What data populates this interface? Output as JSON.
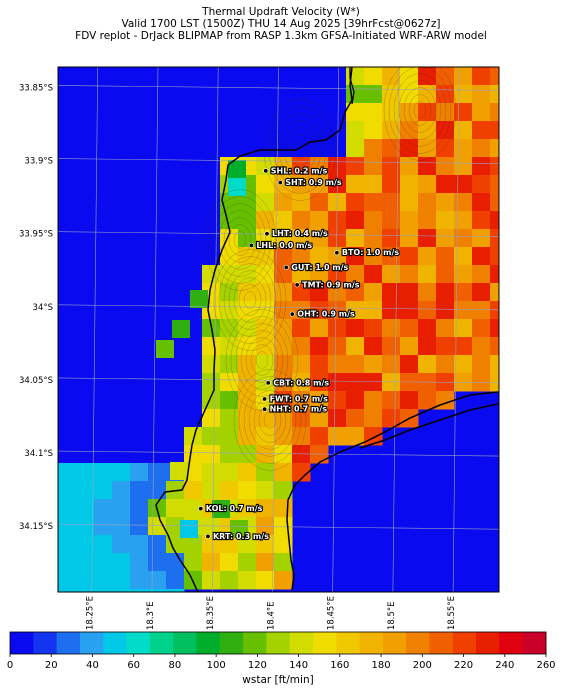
{
  "header": {
    "title_line1": "Thermal Updraft Velocity (W*)",
    "title_line2": "Valid 1700 LST (1500Z) THU 14 Aug 2025 [39hrFcst@0627z]",
    "title_line3": "FDV replot - DrJack BLIPMAP from RASP 1.3km GFSA-Initiated WRF-ARW model"
  },
  "map": {
    "lat_labels": [
      "33.85°S",
      "33.9°S",
      "33.95°S",
      "34°S",
      "34.05°S",
      "34.1°S",
      "34.15°S"
    ],
    "lat_values": [
      -33.85,
      -33.9,
      -33.95,
      -34.0,
      -34.05,
      -34.1,
      -34.15
    ],
    "lon_labels": [
      "18.25°E",
      "18.3°E",
      "18.35°E",
      "18.4°E",
      "18.45°E",
      "18.5°E",
      "18.55°E"
    ],
    "lon_values": [
      18.25,
      18.3,
      18.35,
      18.4,
      18.45,
      18.5,
      18.55
    ],
    "stations": [
      {
        "code": "SHL",
        "text": "SHL: 0.2 m/s",
        "lon": 18.392,
        "lat": -33.907
      },
      {
        "code": "SHT",
        "text": "SHT: 0.9 m/s",
        "lon": 18.404,
        "lat": -33.915
      },
      {
        "code": "LHT",
        "text": "LHT: 0.4 m/s",
        "lon": 18.393,
        "lat": -33.95
      },
      {
        "code": "LHL",
        "text": "LHL: 0.0 m/s",
        "lon": 18.38,
        "lat": -33.958
      },
      {
        "code": "BTO",
        "text": "BTO: 1.0 m/s",
        "lon": 18.451,
        "lat": -33.963
      },
      {
        "code": "GUT",
        "text": "GUT: 1.0 m/s",
        "lon": 18.409,
        "lat": -33.973
      },
      {
        "code": "TMT",
        "text": "TMT: 0.9 m/s",
        "lon": 18.418,
        "lat": -33.985
      },
      {
        "code": "OHT",
        "text": "OHT: 0.9 m/s",
        "lon": 18.414,
        "lat": -34.005
      },
      {
        "code": "CBT",
        "text": "CBT: 0.8 m/s",
        "lon": 18.394,
        "lat": -34.052
      },
      {
        "code": "FWT",
        "text": "FWT: 0.7 m/s",
        "lon": 18.391,
        "lat": -34.063
      },
      {
        "code": "NHT",
        "text": "NHT: 0.7 m/s",
        "lon": 18.391,
        "lat": -34.07
      },
      {
        "code": "KOL",
        "text": "KOL: 0.7 m/s",
        "lon": 18.338,
        "lat": -34.138
      },
      {
        "code": "KRT",
        "text": "KRT: 0.3 m/s",
        "lon": 18.344,
        "lat": -34.157
      }
    ]
  },
  "colorbar": {
    "ticks": [
      "0",
      "20",
      "40",
      "60",
      "80",
      "100",
      "120",
      "140",
      "160",
      "180",
      "200",
      "220",
      "240",
      "260"
    ],
    "colors": [
      "#0a0af0",
      "#1434f0",
      "#1e6ef0",
      "#2aa0f0",
      "#00c8e6",
      "#00dcc8",
      "#00d28c",
      "#00c060",
      "#00ae2c",
      "#30b010",
      "#66c000",
      "#a4d200",
      "#d2dc00",
      "#f0dc00",
      "#f0c800",
      "#f0b400",
      "#f0a000",
      "#f08000",
      "#f06000",
      "#f04000",
      "#e81e00",
      "#e00010",
      "#c8002a"
    ],
    "label": "wstar [ft/min]"
  },
  "field_colors": {
    "water": "#0a0af0",
    "coast": "#000000",
    "station_dot": "#000000"
  }
}
